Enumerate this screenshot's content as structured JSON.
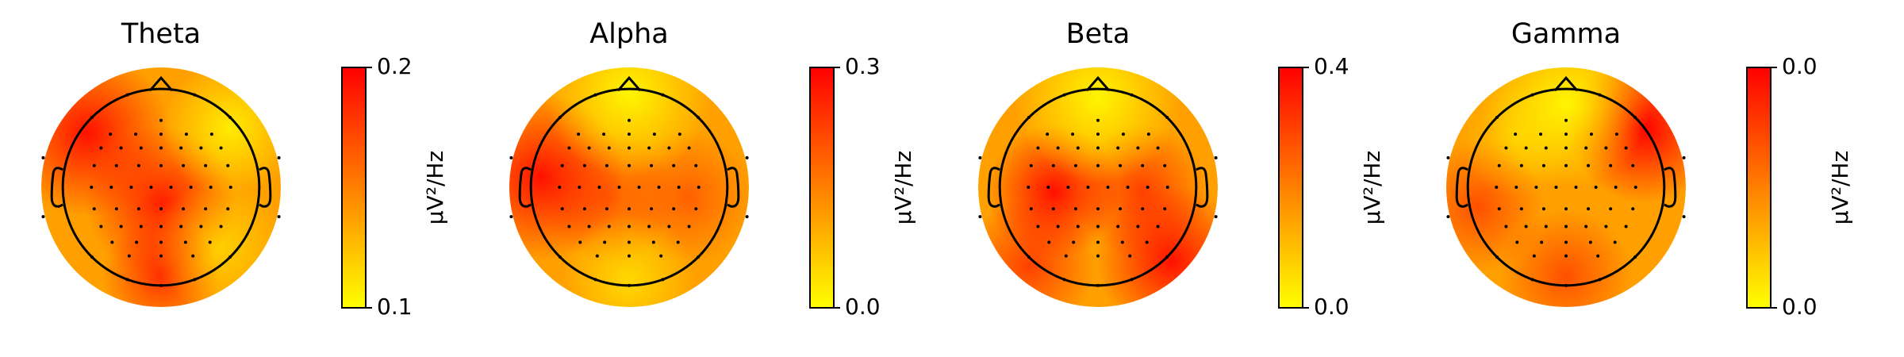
{
  "chart_data": [
    {
      "type": "topomap",
      "title": "Theta",
      "clim": [
        0.1,
        0.2
      ],
      "cticks": [
        0.1,
        0.2
      ],
      "clabel": "µV²/Hz",
      "colormap": [
        "#ffff00",
        "#ff0000"
      ]
    },
    {
      "type": "topomap",
      "title": "Alpha",
      "clim": [
        0,
        0.3
      ],
      "cticks": [
        {
          "value": 0,
          "label": "0.0"
        },
        0.3
      ],
      "clabel": "µV²/Hz",
      "colormap": [
        "#ffff00",
        "#ff0000"
      ]
    },
    {
      "type": "topomap",
      "title": "Beta",
      "clim": [
        0,
        0.4
      ],
      "cticks": [
        {
          "value": 0,
          "label": "0.0"
        },
        0.4
      ],
      "clabel": "µV²/Hz",
      "colormap": [
        "#ffff00",
        "#ff0000"
      ]
    },
    {
      "type": "topomap",
      "title": "Gamma",
      "clim": [
        0,
        0.04
      ],
      "cticks": [
        {
          "value": 0,
          "label": "0.0"
        },
        {
          "value": 0.04,
          "label": "0.0"
        }
      ],
      "clabel": "µV²/Hz",
      "colormap": [
        "#ffff00",
        "#ff0000"
      ]
    }
  ]
}
